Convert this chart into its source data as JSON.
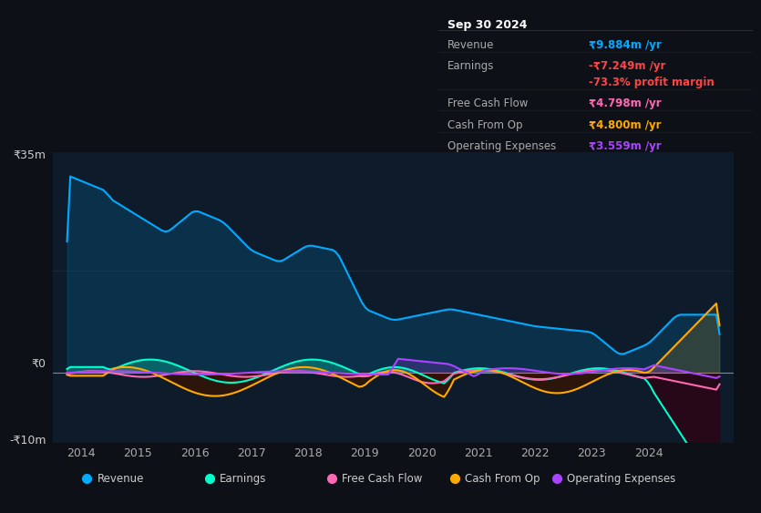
{
  "bg_color": "#0d1117",
  "chart_bg": "#0d1b2a",
  "title": "Sep 30 2024",
  "y_label_top": "₹35m",
  "y_label_zero": "₹0",
  "y_label_bottom": "-₹10m",
  "x_ticks": [
    2014,
    2015,
    2016,
    2017,
    2018,
    2019,
    2020,
    2021,
    2022,
    2023,
    2024
  ],
  "ylim": [
    -12,
    38
  ],
  "xlim": [
    2013.5,
    2025.5
  ],
  "revenue_color": "#00aaff",
  "earnings_color": "#00ffcc",
  "fcf_color": "#ff69b4",
  "cashfromop_color": "#ffaa00",
  "opex_color": "#aa44ff",
  "info": {
    "title": "Sep 30 2024",
    "revenue_label": "Revenue",
    "revenue_value": "₹9.884m /yr",
    "revenue_color": "#00aaff",
    "earnings_label": "Earnings",
    "earnings_value": "-₹7.249m /yr",
    "earnings_color": "#ff4444",
    "earnings_margin": "-73.3% profit margin",
    "earnings_margin_color": "#ff4444",
    "fcf_label": "Free Cash Flow",
    "fcf_value": "₹4.798m /yr",
    "fcf_color": "#ff69b4",
    "cashop_label": "Cash From Op",
    "cashop_value": "₹4.800m /yr",
    "cashop_color": "#ffaa00",
    "opex_label": "Operating Expenses",
    "opex_value": "₹3.559m /yr",
    "opex_color": "#aa44ff"
  },
  "legend": [
    {
      "label": "Revenue",
      "color": "#00aaff"
    },
    {
      "label": "Earnings",
      "color": "#00ffcc"
    },
    {
      "label": "Free Cash Flow",
      "color": "#ff69b4"
    },
    {
      "label": "Cash From Op",
      "color": "#ffaa00"
    },
    {
      "label": "Operating Expenses",
      "color": "#aa44ff"
    }
  ]
}
